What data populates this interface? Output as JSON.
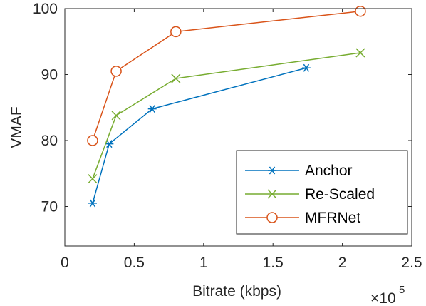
{
  "chart_data": {
    "type": "line",
    "xlabel": "Bitrate (kbps)",
    "ylabel": "VMAF",
    "x_exponent_label": "×10",
    "x_exponent_power": "5",
    "xlim": [
      0,
      2.5
    ],
    "ylim": [
      64,
      100
    ],
    "x_scale_note": "x values in units of 10^5 kbps",
    "x_ticks": [
      0,
      0.5,
      1,
      1.5,
      2,
      2.5
    ],
    "x_tick_labels": [
      "0",
      "0.5",
      "1",
      "1.5",
      "2",
      "2.5"
    ],
    "y_ticks": [
      70,
      80,
      90,
      100
    ],
    "y_tick_labels": [
      "70",
      "80",
      "90",
      "100"
    ],
    "grid": false,
    "legend_position": "bottom-right",
    "series": [
      {
        "name": "Anchor",
        "color": "#0072BD",
        "marker": "asterisk",
        "x": [
          0.2,
          0.32,
          0.63,
          1.74
        ],
        "y": [
          70.5,
          79.5,
          84.8,
          91.0
        ]
      },
      {
        "name": "Re-Scaled",
        "color": "#77AC30",
        "marker": "x",
        "x": [
          0.2,
          0.37,
          0.8,
          2.13
        ],
        "y": [
          74.2,
          83.8,
          89.4,
          93.3
        ]
      },
      {
        "name": "MFRNet",
        "color": "#D95319",
        "marker": "circle",
        "x": [
          0.2,
          0.37,
          0.8,
          2.13
        ],
        "y": [
          80.0,
          90.5,
          96.5,
          99.6
        ]
      }
    ]
  }
}
